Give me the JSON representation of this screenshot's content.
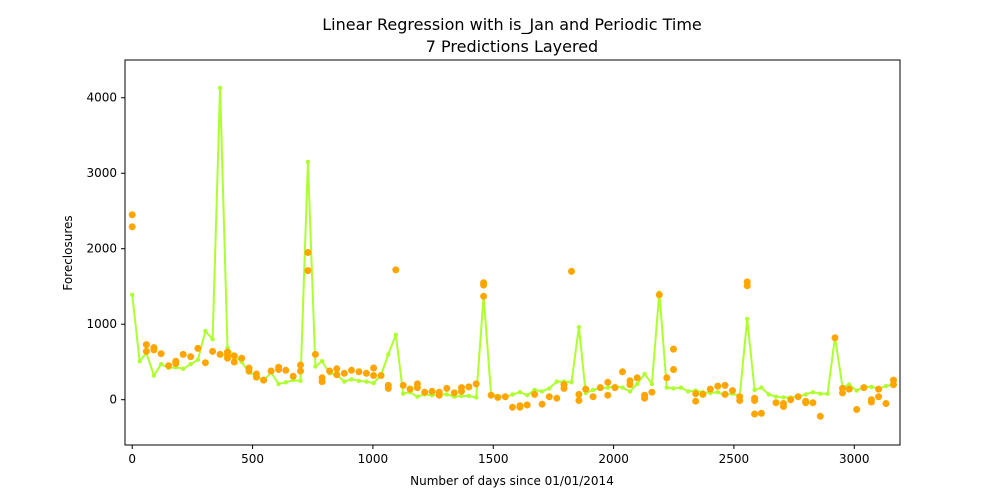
{
  "chart_data": {
    "type": "scatter",
    "title_line1": "Linear Regression with is_Jan and Periodic Time",
    "title_line2": "7 Predictions Layered",
    "xlabel": "Number of days since 01/01/2014",
    "ylabel": "Foreclosures",
    "xlim": [
      -30,
      3190
    ],
    "ylim": [
      -600,
      4500
    ],
    "xticks": [
      0,
      500,
      1000,
      1500,
      2000,
      2500,
      3000
    ],
    "yticks": [
      0,
      1000,
      2000,
      3000,
      4000
    ],
    "grid": false,
    "colors": {
      "prediction": "#adff2f",
      "actual": "#ffa500"
    },
    "series": [
      {
        "type": "line",
        "x": [
          0,
          31,
          59,
          90,
          120,
          151,
          181,
          212,
          243,
          273,
          304,
          334,
          365,
          396,
          424,
          455,
          485,
          516,
          546,
          577,
          608,
          638,
          669,
          699,
          730,
          761,
          789,
          820,
          850,
          881,
          911,
          942,
          973,
          1003,
          1034,
          1064,
          1095,
          1126,
          1154,
          1185,
          1215,
          1246,
          1276,
          1307,
          1338,
          1368,
          1399,
          1429,
          1460,
          1491,
          1519,
          1550,
          1580,
          1611,
          1641,
          1672,
          1703,
          1733,
          1764,
          1794,
          1825,
          1856,
          1884,
          1915,
          1945,
          1976,
          2006,
          2037,
          2068,
          2098,
          2129,
          2159,
          2190,
          2221,
          2249,
          2280,
          2310,
          2341,
          2371,
          2402,
          2433,
          2463,
          2494,
          2524,
          2555,
          2586,
          2614,
          2645,
          2675,
          2706,
          2736,
          2767,
          2798,
          2828,
          2859,
          2889,
          2920,
          2951,
          2979,
          3010,
          3040,
          3071,
          3101,
          3132,
          3163
        ],
        "values": [
          1390,
          510,
          620,
          320,
          470,
          420,
          430,
          410,
          470,
          530,
          910,
          800,
          4130,
          690,
          580,
          500,
          360,
          320,
          250,
          360,
          210,
          230,
          260,
          250,
          3150,
          440,
          510,
          350,
          330,
          240,
          270,
          250,
          240,
          220,
          330,
          600,
          860,
          80,
          100,
          40,
          70,
          60,
          70,
          70,
          40,
          50,
          50,
          30,
          1370,
          70,
          50,
          30,
          70,
          100,
          60,
          130,
          110,
          150,
          240,
          240,
          230,
          960,
          90,
          130,
          150,
          160,
          180,
          160,
          110,
          210,
          340,
          210,
          1420,
          160,
          150,
          160,
          110,
          120,
          100,
          90,
          100,
          60,
          80,
          50,
          1070,
          130,
          160,
          70,
          40,
          30,
          30,
          40,
          70,
          100,
          80,
          80,
          830,
          170,
          200,
          120,
          170,
          170,
          150,
          180,
          200
        ]
      },
      {
        "type": "points",
        "points": [
          [
            0,
            2450
          ],
          [
            0,
            2290
          ],
          [
            59,
            730
          ],
          [
            59,
            640
          ],
          [
            90,
            690
          ],
          [
            90,
            660
          ],
          [
            120,
            610
          ],
          [
            151,
            450
          ],
          [
            181,
            510
          ],
          [
            181,
            480
          ],
          [
            212,
            600
          ],
          [
            243,
            570
          ],
          [
            273,
            680
          ],
          [
            304,
            490
          ],
          [
            334,
            640
          ],
          [
            365,
            600
          ],
          [
            396,
            630
          ],
          [
            396,
            590
          ],
          [
            396,
            550
          ],
          [
            424,
            580
          ],
          [
            424,
            500
          ],
          [
            455,
            550
          ],
          [
            485,
            420
          ],
          [
            485,
            380
          ],
          [
            516,
            340
          ],
          [
            516,
            300
          ],
          [
            546,
            260
          ],
          [
            577,
            380
          ],
          [
            608,
            430
          ],
          [
            608,
            400
          ],
          [
            638,
            390
          ],
          [
            669,
            310
          ],
          [
            699,
            460
          ],
          [
            699,
            380
          ],
          [
            730,
            1950
          ],
          [
            730,
            1710
          ],
          [
            761,
            600
          ],
          [
            789,
            240
          ],
          [
            789,
            290
          ],
          [
            820,
            380
          ],
          [
            850,
            410
          ],
          [
            850,
            330
          ],
          [
            881,
            350
          ],
          [
            911,
            390
          ],
          [
            942,
            370
          ],
          [
            973,
            350
          ],
          [
            1003,
            420
          ],
          [
            1003,
            320
          ],
          [
            1034,
            320
          ],
          [
            1064,
            190
          ],
          [
            1064,
            150
          ],
          [
            1095,
            1720
          ],
          [
            1126,
            190
          ],
          [
            1154,
            140
          ],
          [
            1185,
            210
          ],
          [
            1185,
            160
          ],
          [
            1215,
            100
          ],
          [
            1246,
            110
          ],
          [
            1276,
            60
          ],
          [
            1276,
            100
          ],
          [
            1307,
            150
          ],
          [
            1338,
            90
          ],
          [
            1368,
            160
          ],
          [
            1368,
            110
          ],
          [
            1399,
            170
          ],
          [
            1429,
            210
          ],
          [
            1460,
            1550
          ],
          [
            1460,
            1520
          ],
          [
            1460,
            1370
          ],
          [
            1491,
            60
          ],
          [
            1519,
            30
          ],
          [
            1550,
            40
          ],
          [
            1580,
            -100
          ],
          [
            1611,
            -100
          ],
          [
            1611,
            -80
          ],
          [
            1641,
            -70
          ],
          [
            1672,
            70
          ],
          [
            1703,
            -60
          ],
          [
            1733,
            40
          ],
          [
            1764,
            20
          ],
          [
            1794,
            150
          ],
          [
            1794,
            200
          ],
          [
            1825,
            1700
          ],
          [
            1856,
            70
          ],
          [
            1856,
            -10
          ],
          [
            1884,
            140
          ],
          [
            1915,
            40
          ],
          [
            1945,
            160
          ],
          [
            1976,
            230
          ],
          [
            1976,
            60
          ],
          [
            2006,
            160
          ],
          [
            2037,
            370
          ],
          [
            2068,
            250
          ],
          [
            2068,
            200
          ],
          [
            2098,
            290
          ],
          [
            2129,
            60
          ],
          [
            2129,
            20
          ],
          [
            2159,
            100
          ],
          [
            2190,
            1390
          ],
          [
            2221,
            290
          ],
          [
            2249,
            670
          ],
          [
            2249,
            400
          ],
          [
            2341,
            80
          ],
          [
            2341,
            -20
          ],
          [
            2371,
            70
          ],
          [
            2402,
            140
          ],
          [
            2433,
            180
          ],
          [
            2463,
            190
          ],
          [
            2463,
            70
          ],
          [
            2494,
            120
          ],
          [
            2524,
            40
          ],
          [
            2524,
            -10
          ],
          [
            2555,
            1560
          ],
          [
            2555,
            1510
          ],
          [
            2586,
            20
          ],
          [
            2586,
            -10
          ],
          [
            2586,
            -190
          ],
          [
            2614,
            -180
          ],
          [
            2675,
            -40
          ],
          [
            2706,
            -90
          ],
          [
            2706,
            -50
          ],
          [
            2736,
            0
          ],
          [
            2767,
            40
          ],
          [
            2798,
            -40
          ],
          [
            2798,
            -20
          ],
          [
            2828,
            -40
          ],
          [
            2859,
            -220
          ],
          [
            2920,
            820
          ],
          [
            2951,
            150
          ],
          [
            2951,
            90
          ],
          [
            2979,
            140
          ],
          [
            3010,
            -130
          ],
          [
            3040,
            160
          ],
          [
            3071,
            -30
          ],
          [
            3071,
            0
          ],
          [
            3101,
            140
          ],
          [
            3101,
            40
          ],
          [
            3132,
            -50
          ],
          [
            3163,
            260
          ],
          [
            3163,
            200
          ]
        ]
      }
    ]
  }
}
